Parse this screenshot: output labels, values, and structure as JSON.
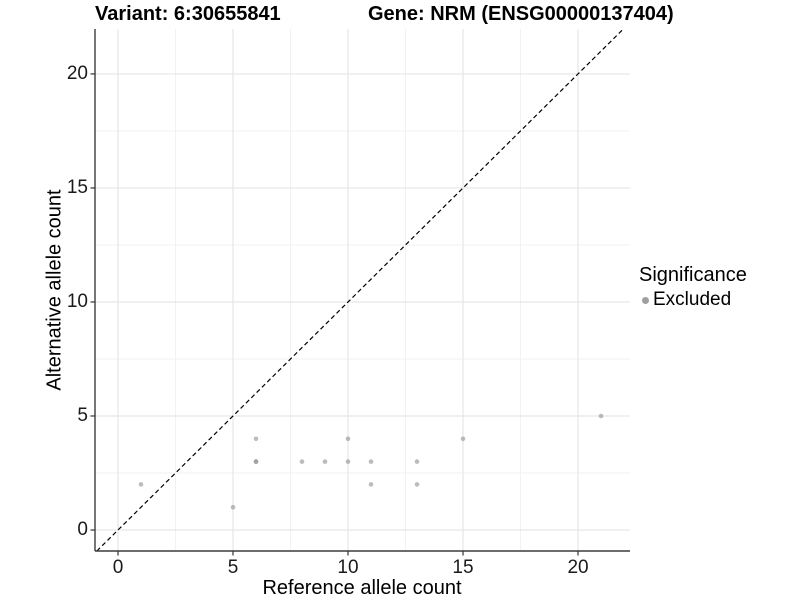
{
  "chart_data": {
    "type": "scatter",
    "titles": {
      "left": "Variant: 6:30655841",
      "right": "Gene: NRM (ENSG00000137404)"
    },
    "xlabel": "Reference allele count",
    "ylabel": "Alternative allele count",
    "xlim": [
      -1.0,
      22.26
    ],
    "ylim": [
      -0.92,
      21.97
    ],
    "xticks": [
      0,
      5,
      10,
      15,
      20
    ],
    "yticks": [
      0,
      5,
      10,
      15,
      20
    ],
    "minor_grid_step": 2.5,
    "grid": "on",
    "identity_line": {
      "style": "dashed",
      "slope": 1,
      "intercept": 0,
      "color": "#000000",
      "dash": "4.5 3"
    },
    "series": [
      {
        "name": "Excluded",
        "color": "#8f8f8f",
        "opacity": 0.6,
        "marker_radius": 2.3,
        "points": [
          [
            1,
            2
          ],
          [
            5,
            1
          ],
          [
            6,
            3
          ],
          [
            6,
            3
          ],
          [
            6,
            4
          ],
          [
            8,
            3
          ],
          [
            9,
            3
          ],
          [
            10,
            3
          ],
          [
            10,
            4
          ],
          [
            11,
            2
          ],
          [
            11,
            3
          ],
          [
            13,
            2
          ],
          [
            13,
            3
          ],
          [
            15,
            4
          ],
          [
            21,
            5
          ]
        ]
      }
    ],
    "legend": {
      "position": "right",
      "title": "Significance",
      "items": [
        {
          "label": "Excluded",
          "marker_color": "#9f9f9f"
        }
      ]
    },
    "colors": {
      "background": "#ffffff",
      "grid_major": "#e6e6e6",
      "grid_minor": "#f2f2f2",
      "axis_line": "#3c3c3c",
      "tick_mark": "#333333",
      "tick_text": "#1a1a1a"
    }
  }
}
